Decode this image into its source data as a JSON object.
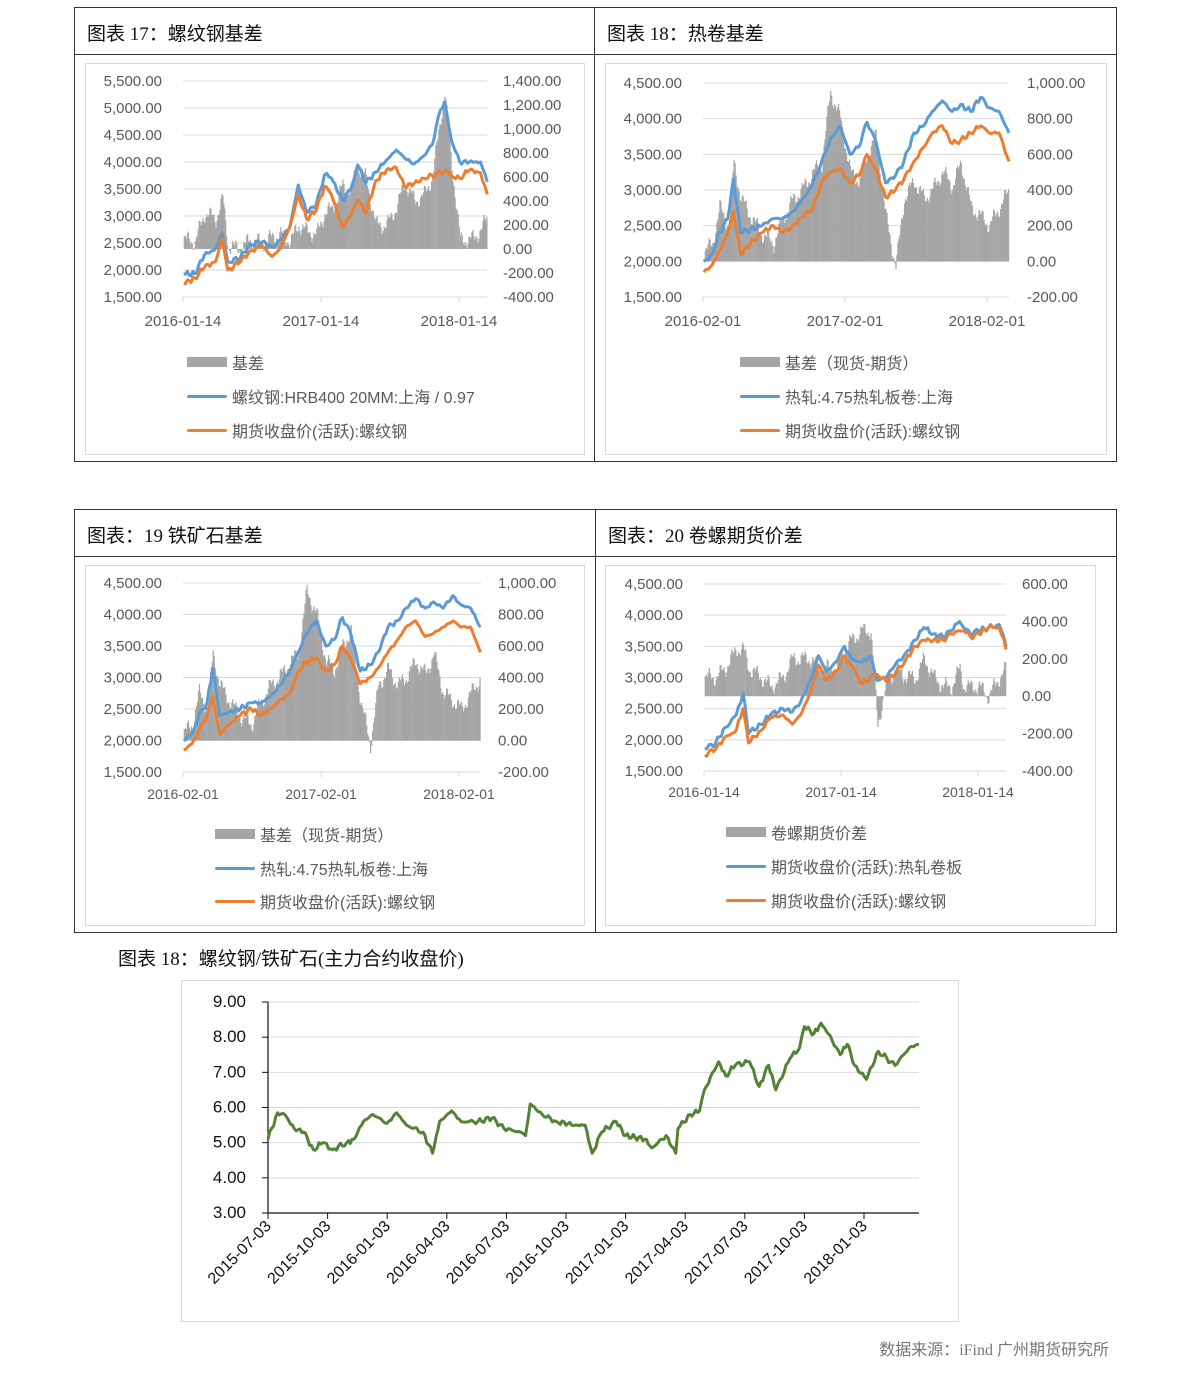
{
  "colors": {
    "spot": "#5b9bd5",
    "futures": "#ed7d31",
    "basis": "#a5a5a5",
    "ratio": "#548235",
    "grid": "#d9d9d9",
    "axis_text": "#595959"
  },
  "panels": [
    {
      "title": "图表 17：螺纹钢基差",
      "legend": [
        "基差",
        "螺纹钢:HRB400 20MM:上海 / 0.97",
        "期货收盘价(活跃):螺纹钢"
      ]
    },
    {
      "title": "图表 18：热卷基差",
      "legend": [
        "基差（现货-期货）",
        "热轧:4.75热轧板卷:上海",
        "期货收盘价(活跃):螺纹钢"
      ]
    },
    {
      "title": "图表：19 铁矿石基差",
      "legend": [
        "基差（现货-期货）",
        "热轧:4.75热轧板卷:上海",
        "期货收盘价(活跃):螺纹钢"
      ]
    },
    {
      "title": "图表：20 卷螺期货价差",
      "legend": [
        "卷螺期货价差",
        "期货收盘价(活跃):热轧卷板",
        "期货收盘价(活跃):螺纹钢"
      ]
    }
  ],
  "chart5_caption": "图表 18：螺纹钢/铁矿石(主力合约收盘价)",
  "source": "数据来源：iFind 广州期货研究所",
  "chart_data": [
    {
      "type": "line+area",
      "title": "图表 17：螺纹钢基差",
      "left_ticks": [
        "5,500.00",
        "5,000.00",
        "4,500.00",
        "4,000.00",
        "3,500.00",
        "3,000.00",
        "2,500.00",
        "2,000.00",
        "1,500.00"
      ],
      "right_ticks": [
        "1,400.00",
        "1,200.00",
        "1,000.00",
        "800.00",
        "600.00",
        "400.00",
        "200.00",
        "0.00",
        "-200.00",
        "-400.00"
      ],
      "x_ticks": [
        "2016-01-14",
        "2017-01-14",
        "2018-01-14"
      ],
      "ylim_left": [
        1500,
        5500
      ],
      "ylim_right": [
        -400,
        1400
      ],
      "x": [
        2016.04,
        2016.12,
        2016.19,
        2016.27,
        2016.32,
        2016.36,
        2016.45,
        2016.52,
        2016.61,
        2016.68,
        2016.74,
        2016.81,
        2016.87,
        2016.93,
        2017.0,
        2017.06,
        2017.11,
        2017.19,
        2017.25,
        2017.3,
        2017.36,
        2017.43,
        2017.51,
        2017.58,
        2017.64,
        2017.71,
        2017.78,
        2017.84,
        2017.9,
        2017.93,
        2017.98,
        2018.04,
        2018.11,
        2018.19,
        2018.24
      ],
      "series": [
        {
          "name": "基差",
          "axis": "right",
          "kind": "area",
          "values": [
            80,
            60,
            300,
            250,
            420,
            20,
            0,
            80,
            50,
            100,
            120,
            60,
            200,
            150,
            120,
            300,
            330,
            520,
            500,
            700,
            580,
            200,
            200,
            350,
            550,
            400,
            450,
            600,
            1100,
            1300,
            700,
            80,
            70,
            150,
            280
          ]
        },
        {
          "name": "螺纹钢:HRB400 20MM:上海 / 0.97",
          "axis": "left",
          "kind": "line",
          "values": [
            1926,
            1930,
            2278,
            2389,
            2685,
            2148,
            2222,
            2481,
            2518,
            2426,
            2556,
            2796,
            3574,
            3074,
            3204,
            3759,
            3704,
            3296,
            3481,
            3944,
            3611,
            3815,
            4037,
            4222,
            4074,
            3963,
            4111,
            4315,
            4963,
            5111,
            4407,
            4000,
            4000,
            4000,
            3630
          ]
        },
        {
          "name": "期货收盘价(活跃):螺纹钢",
          "axis": "left",
          "kind": "line",
          "values": [
            1750,
            1850,
            2050,
            2150,
            2600,
            2000,
            2150,
            2350,
            2450,
            2250,
            2400,
            2800,
            3400,
            2950,
            3100,
            3550,
            3400,
            2800,
            3000,
            3300,
            3050,
            3650,
            3850,
            3900,
            3550,
            3600,
            3700,
            3750,
            3800,
            3850,
            3750,
            3700,
            3850,
            3800,
            3400
          ]
        }
      ]
    },
    {
      "type": "line+area",
      "title": "图表 18：热卷基差",
      "left_ticks": [
        "4,500.00",
        "4,000.00",
        "3,500.00",
        "3,000.00",
        "2,500.00",
        "2,000.00",
        "1,500.00"
      ],
      "right_ticks": [
        "1,000.00",
        "800.00",
        "600.00",
        "400.00",
        "200.00",
        "0.00",
        "-200.00"
      ],
      "x_ticks": [
        "2016-02-01",
        "2017-02-01",
        "2018-02-01"
      ],
      "ylim_left": [
        1500,
        4500
      ],
      "ylim_right": [
        -200,
        1000
      ],
      "x": [
        2016.09,
        2016.15,
        2016.2,
        2016.26,
        2016.3,
        2016.35,
        2016.42,
        2016.5,
        2016.58,
        2016.65,
        2016.72,
        2016.8,
        2016.86,
        2016.92,
        2016.98,
        2017.05,
        2017.12,
        2017.18,
        2017.24,
        2017.3,
        2017.37,
        2017.44,
        2017.5,
        2017.57,
        2017.64,
        2017.7,
        2017.77,
        2017.84,
        2017.9,
        2017.97,
        2018.04,
        2018.1,
        2018.17,
        2018.24
      ],
      "series": [
        {
          "name": "基差（现货-期货）",
          "axis": "right",
          "kind": "area",
          "values": [
            50,
            100,
            300,
            200,
            550,
            350,
            250,
            150,
            100,
            250,
            350,
            420,
            500,
            550,
            950,
            800,
            500,
            450,
            600,
            700,
            250,
            -30,
            350,
            450,
            350,
            400,
            500,
            420,
            550,
            300,
            250,
            200,
            300,
            400
          ]
        },
        {
          "name": "热轧:4.75热轧板卷:上海",
          "axis": "left",
          "kind": "line",
          "values": [
            2000,
            2100,
            2400,
            2600,
            3150,
            2400,
            2450,
            2500,
            2600,
            2600,
            2700,
            2900,
            3100,
            3400,
            3700,
            3900,
            3500,
            3600,
            3950,
            3700,
            3100,
            3200,
            3400,
            3800,
            3900,
            4100,
            4250,
            4100,
            4200,
            4100,
            4300,
            4150,
            4100,
            3800
          ]
        },
        {
          "name": "期货收盘价(活跃):螺纹钢",
          "axis": "left",
          "kind": "line",
          "values": [
            1850,
            1950,
            2150,
            2400,
            2700,
            2100,
            2250,
            2400,
            2500,
            2400,
            2500,
            2650,
            2750,
            3100,
            3250,
            3300,
            3100,
            3200,
            3500,
            3300,
            2900,
            3000,
            3150,
            3400,
            3600,
            3800,
            3900,
            3650,
            3700,
            3800,
            3900,
            3800,
            3800,
            3400
          ]
        }
      ]
    },
    {
      "type": "line+area",
      "title": "图表：19 铁矿石基差",
      "left_ticks": [
        "4,500.00",
        "4,000.00",
        "3,500.00",
        "3,000.00",
        "2,500.00",
        "2,000.00",
        "1,500.00"
      ],
      "right_ticks": [
        "1,000.00",
        "800.00",
        "600.00",
        "400.00",
        "200.00",
        "0.00",
        "-200.00"
      ],
      "x_ticks": [
        "2016-02-01",
        "2017-02-01",
        "2018-02-01"
      ],
      "ylim_left": [
        1500,
        4500
      ],
      "ylim_right": [
        -200,
        1000
      ],
      "x": [
        2016.09,
        2016.15,
        2016.2,
        2016.26,
        2016.3,
        2016.35,
        2016.42,
        2016.5,
        2016.58,
        2016.65,
        2016.72,
        2016.8,
        2016.86,
        2016.92,
        2016.98,
        2017.05,
        2017.12,
        2017.18,
        2017.24,
        2017.3,
        2017.37,
        2017.44,
        2017.5,
        2017.57,
        2017.64,
        2017.7,
        2017.77,
        2017.84,
        2017.9,
        2017.97,
        2018.04,
        2018.1,
        2018.17,
        2018.24
      ],
      "series": [
        {
          "name": "基差（现货-期货）",
          "axis": "right",
          "kind": "area",
          "values": [
            50,
            100,
            300,
            200,
            550,
            350,
            250,
            150,
            100,
            250,
            350,
            420,
            500,
            550,
            950,
            800,
            500,
            450,
            600,
            700,
            250,
            -30,
            350,
            450,
            350,
            400,
            500,
            420,
            550,
            300,
            250,
            200,
            300,
            400
          ]
        },
        {
          "name": "热轧:4.75热轧板卷:上海",
          "axis": "left",
          "kind": "line",
          "values": [
            2000,
            2100,
            2400,
            2600,
            3150,
            2400,
            2450,
            2500,
            2600,
            2600,
            2700,
            2900,
            3100,
            3400,
            3700,
            3900,
            3500,
            3600,
            3950,
            3700,
            3100,
            3200,
            3400,
            3800,
            3900,
            4100,
            4250,
            4100,
            4200,
            4100,
            4300,
            4150,
            4100,
            3800
          ]
        },
        {
          "name": "期货收盘价(活跃):螺纹钢",
          "axis": "left",
          "kind": "line",
          "values": [
            1850,
            1950,
            2150,
            2400,
            2700,
            2100,
            2250,
            2400,
            2500,
            2400,
            2500,
            2650,
            2750,
            3100,
            3250,
            3300,
            3100,
            3200,
            3500,
            3300,
            2900,
            3000,
            3150,
            3400,
            3600,
            3800,
            3900,
            3650,
            3700,
            3800,
            3900,
            3800,
            3800,
            3400
          ]
        }
      ]
    },
    {
      "type": "line+area",
      "title": "图表：20 卷螺期货价差",
      "left_ticks": [
        "4,500.00",
        "4,000.00",
        "3,500.00",
        "3,000.00",
        "2,500.00",
        "2,000.00",
        "1,500.00"
      ],
      "right_ticks": [
        "600.00",
        "400.00",
        "200.00",
        "0.00",
        "-200.00",
        "-400.00"
      ],
      "x_ticks": [
        "2016-01-14",
        "2017-01-14",
        "2018-01-14"
      ],
      "ylim_left": [
        1500,
        4500
      ],
      "ylim_right": [
        -400,
        600
      ],
      "x": [
        2016.04,
        2016.12,
        2016.19,
        2016.27,
        2016.32,
        2016.36,
        2016.45,
        2016.52,
        2016.61,
        2016.68,
        2016.74,
        2016.81,
        2016.87,
        2016.93,
        2017.0,
        2017.06,
        2017.11,
        2017.19,
        2017.25,
        2017.3,
        2017.36,
        2017.43,
        2017.51,
        2017.58,
        2017.64,
        2017.71,
        2017.78,
        2017.84,
        2017.9,
        2017.93,
        2017.98,
        2018.04,
        2018.11,
        2018.19,
        2018.24
      ],
      "series": [
        {
          "name": "卷螺期货价差",
          "axis": "right",
          "kind": "area",
          "values": [
            100,
            100,
            150,
            250,
            250,
            150,
            100,
            50,
            100,
            200,
            200,
            200,
            150,
            150,
            150,
            250,
            300,
            350,
            350,
            -150,
            50,
            150,
            100,
            100,
            200,
            100,
            50,
            50,
            150,
            50,
            50,
            50,
            0,
            100,
            150
          ]
        },
        {
          "name": "期货收盘价(活跃):热轧卷板",
          "axis": "left",
          "kind": "line",
          "values": [
            1850,
            1950,
            2200,
            2400,
            2750,
            2100,
            2250,
            2400,
            2500,
            2450,
            2600,
            2950,
            3350,
            3100,
            3250,
            3500,
            3300,
            3250,
            3350,
            2950,
            3000,
            3200,
            3400,
            3600,
            3800,
            3700,
            3650,
            3750,
            3900,
            3800,
            3700,
            3750,
            3800,
            3850,
            3500
          ]
        },
        {
          "name": "期货收盘价(活跃):螺纹钢",
          "axis": "left",
          "kind": "line",
          "values": [
            1750,
            1850,
            2050,
            2150,
            2500,
            1950,
            2150,
            2350,
            2400,
            2250,
            2400,
            2750,
            3200,
            2950,
            3100,
            3350,
            3200,
            2900,
            3000,
            3050,
            2950,
            3050,
            3300,
            3500,
            3600,
            3600,
            3600,
            3700,
            3750,
            3750,
            3650,
            3700,
            3800,
            3800,
            3450
          ]
        }
      ]
    },
    {
      "type": "line",
      "title": "图表 18：螺纹钢/铁矿石(主力合约收盘价)",
      "left_ticks": [
        "9.00",
        "8.00",
        "7.00",
        "6.00",
        "5.00",
        "4.00",
        "3.00"
      ],
      "x_ticks": [
        "2015-07-03",
        "2015-10-03",
        "2016-01-03",
        "2016-04-03",
        "2016-07-03",
        "2016-10-03",
        "2017-01-03",
        "2017-04-03",
        "2017-07-03",
        "2017-10-03",
        "2018-01-03"
      ],
      "ylim_left": [
        3,
        9
      ],
      "x": [
        2015.5,
        2015.54,
        2015.57,
        2015.61,
        2015.65,
        2015.69,
        2015.73,
        2015.77,
        2015.83,
        2015.86,
        2015.9,
        2015.94,
        2016.0,
        2016.04,
        2016.08,
        2016.15,
        2016.19,
        2016.22,
        2016.27,
        2016.31,
        2016.38,
        2016.44,
        2016.49,
        2016.56,
        2016.58,
        2016.6,
        2016.65,
        2016.71,
        2016.79,
        2016.83,
        2016.86,
        2016.9,
        2016.96,
        2017.0,
        2017.08,
        2017.11,
        2017.17,
        2017.21,
        2017.22,
        2017.27,
        2017.31,
        2017.33,
        2017.39,
        2017.42,
        2017.46,
        2017.52,
        2017.56,
        2017.6,
        2017.63,
        2017.69,
        2017.73,
        2017.75,
        2017.79,
        2017.82,
        2017.85,
        2017.9,
        2017.93,
        2017.96,
        2018.01,
        2018.06,
        2018.13,
        2018.19,
        2018.23
      ],
      "series": [
        {
          "name": "螺纹钢/铁矿石",
          "axis": "left",
          "kind": "line",
          "values": [
            5.1,
            5.85,
            5.8,
            5.4,
            5.3,
            4.8,
            5.0,
            4.8,
            5.0,
            5.1,
            5.6,
            5.8,
            5.55,
            5.85,
            5.5,
            5.3,
            4.7,
            5.6,
            5.9,
            5.6,
            5.6,
            5.7,
            5.4,
            5.3,
            5.2,
            6.1,
            5.8,
            5.6,
            5.5,
            5.5,
            4.7,
            5.3,
            5.6,
            5.2,
            5.1,
            4.85,
            5.2,
            4.7,
            5.4,
            5.8,
            5.9,
            6.5,
            7.3,
            6.9,
            7.2,
            7.3,
            6.6,
            7.2,
            6.5,
            7.4,
            7.7,
            8.3,
            8.1,
            8.4,
            8.1,
            7.5,
            7.8,
            7.2,
            6.8,
            7.6,
            7.2,
            7.7,
            7.8
          ]
        }
      ]
    }
  ]
}
